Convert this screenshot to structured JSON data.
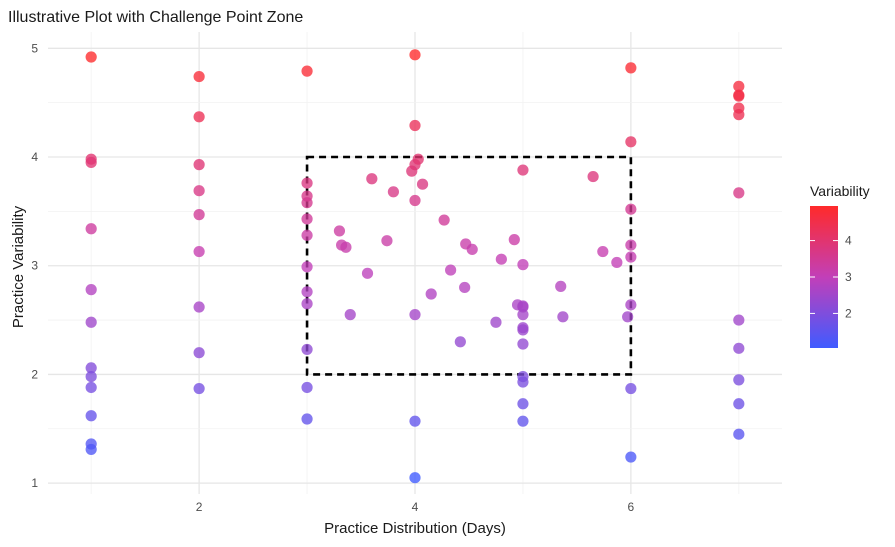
{
  "chart_data": {
    "type": "scatter",
    "title": "Illustrative Plot with Challenge Point Zone",
    "xlabel": "Practice Distribution (Days)",
    "ylabel": "Practice Variability",
    "xlim": [
      0.6,
      7.4
    ],
    "ylim": [
      0.9,
      5.15
    ],
    "x_ticks": [
      2,
      4,
      6
    ],
    "y_ticks": [
      1,
      2,
      3,
      4,
      5
    ],
    "grid": true,
    "color_scale": {
      "name": "Variability",
      "low": "#3f5bff",
      "mid": "#c23fb8",
      "high": "#ff2a2a",
      "min": 1.05,
      "max": 4.95,
      "ticks": [
        2,
        3,
        4
      ]
    },
    "zone": {
      "x": [
        3,
        6
      ],
      "y": [
        2,
        4
      ],
      "style": "dashed"
    },
    "points": [
      {
        "x": 1,
        "y": 4.92
      },
      {
        "x": 1,
        "y": 3.98
      },
      {
        "x": 1,
        "y": 3.95
      },
      {
        "x": 1,
        "y": 3.34
      },
      {
        "x": 1,
        "y": 2.78
      },
      {
        "x": 1,
        "y": 2.48
      },
      {
        "x": 1,
        "y": 2.06
      },
      {
        "x": 1,
        "y": 1.98
      },
      {
        "x": 1,
        "y": 1.88
      },
      {
        "x": 1,
        "y": 1.62
      },
      {
        "x": 1,
        "y": 1.36
      },
      {
        "x": 1,
        "y": 1.31
      },
      {
        "x": 2,
        "y": 4.74
      },
      {
        "x": 2,
        "y": 4.37
      },
      {
        "x": 2,
        "y": 3.93
      },
      {
        "x": 2,
        "y": 3.69
      },
      {
        "x": 2,
        "y": 3.47
      },
      {
        "x": 2,
        "y": 3.13
      },
      {
        "x": 2,
        "y": 2.62
      },
      {
        "x": 2,
        "y": 2.2
      },
      {
        "x": 2,
        "y": 1.87
      },
      {
        "x": 3,
        "y": 4.79
      },
      {
        "x": 3,
        "y": 3.76
      },
      {
        "x": 3,
        "y": 3.64
      },
      {
        "x": 3,
        "y": 3.58
      },
      {
        "x": 3,
        "y": 3.43
      },
      {
        "x": 3,
        "y": 3.28
      },
      {
        "x": 3,
        "y": 2.99
      },
      {
        "x": 3,
        "y": 2.76
      },
      {
        "x": 3,
        "y": 2.65
      },
      {
        "x": 3,
        "y": 2.23
      },
      {
        "x": 3,
        "y": 1.88
      },
      {
        "x": 3,
        "y": 1.59
      },
      {
        "x": 3.3,
        "y": 3.32
      },
      {
        "x": 3.32,
        "y": 3.19
      },
      {
        "x": 3.36,
        "y": 3.17
      },
      {
        "x": 3.4,
        "y": 2.55
      },
      {
        "x": 3.56,
        "y": 2.93
      },
      {
        "x": 3.6,
        "y": 3.8
      },
      {
        "x": 3.74,
        "y": 3.23
      },
      {
        "x": 3.8,
        "y": 3.68
      },
      {
        "x": 3.97,
        "y": 3.87
      },
      {
        "x": 4.0,
        "y": 3.93
      },
      {
        "x": 4.03,
        "y": 3.98
      },
      {
        "x": 4.07,
        "y": 3.75
      },
      {
        "x": 4.0,
        "y": 3.6
      },
      {
        "x": 4.0,
        "y": 2.55
      },
      {
        "x": 4.15,
        "y": 2.74
      },
      {
        "x": 4.27,
        "y": 3.42
      },
      {
        "x": 4.33,
        "y": 2.96
      },
      {
        "x": 4.42,
        "y": 2.3
      },
      {
        "x": 4.47,
        "y": 3.2
      },
      {
        "x": 4.53,
        "y": 3.15
      },
      {
        "x": 4.46,
        "y": 2.8
      },
      {
        "x": 4,
        "y": 4.94
      },
      {
        "x": 4,
        "y": 4.29
      },
      {
        "x": 4,
        "y": 1.57
      },
      {
        "x": 4,
        "y": 1.05
      },
      {
        "x": 4.75,
        "y": 2.48
      },
      {
        "x": 4.8,
        "y": 3.06
      },
      {
        "x": 4.92,
        "y": 3.24
      },
      {
        "x": 4.95,
        "y": 2.64
      },
      {
        "x": 5,
        "y": 3.88
      },
      {
        "x": 5,
        "y": 3.01
      },
      {
        "x": 5,
        "y": 2.63
      },
      {
        "x": 5,
        "y": 2.62
      },
      {
        "x": 5,
        "y": 2.55
      },
      {
        "x": 5,
        "y": 2.43
      },
      {
        "x": 5,
        "y": 2.41
      },
      {
        "x": 5,
        "y": 2.28
      },
      {
        "x": 5,
        "y": 1.98
      },
      {
        "x": 5,
        "y": 1.93
      },
      {
        "x": 5,
        "y": 1.73
      },
      {
        "x": 5,
        "y": 1.57
      },
      {
        "x": 5.35,
        "y": 2.81
      },
      {
        "x": 5.37,
        "y": 2.53
      },
      {
        "x": 5.65,
        "y": 3.82
      },
      {
        "x": 5.74,
        "y": 3.13
      },
      {
        "x": 5.87,
        "y": 3.03
      },
      {
        "x": 5.97,
        "y": 2.53
      },
      {
        "x": 6,
        "y": 4.82
      },
      {
        "x": 6,
        "y": 4.14
      },
      {
        "x": 6,
        "y": 3.52
      },
      {
        "x": 6,
        "y": 3.19
      },
      {
        "x": 6,
        "y": 3.08
      },
      {
        "x": 6,
        "y": 2.64
      },
      {
        "x": 6,
        "y": 1.87
      },
      {
        "x": 6,
        "y": 1.24
      },
      {
        "x": 7,
        "y": 4.65
      },
      {
        "x": 7,
        "y": 4.57
      },
      {
        "x": 7,
        "y": 4.56
      },
      {
        "x": 7,
        "y": 4.45
      },
      {
        "x": 7,
        "y": 4.39
      },
      {
        "x": 7,
        "y": 3.67
      },
      {
        "x": 7,
        "y": 2.5
      },
      {
        "x": 7,
        "y": 2.24
      },
      {
        "x": 7,
        "y": 1.95
      },
      {
        "x": 7,
        "y": 1.73
      },
      {
        "x": 7,
        "y": 1.45
      }
    ]
  }
}
